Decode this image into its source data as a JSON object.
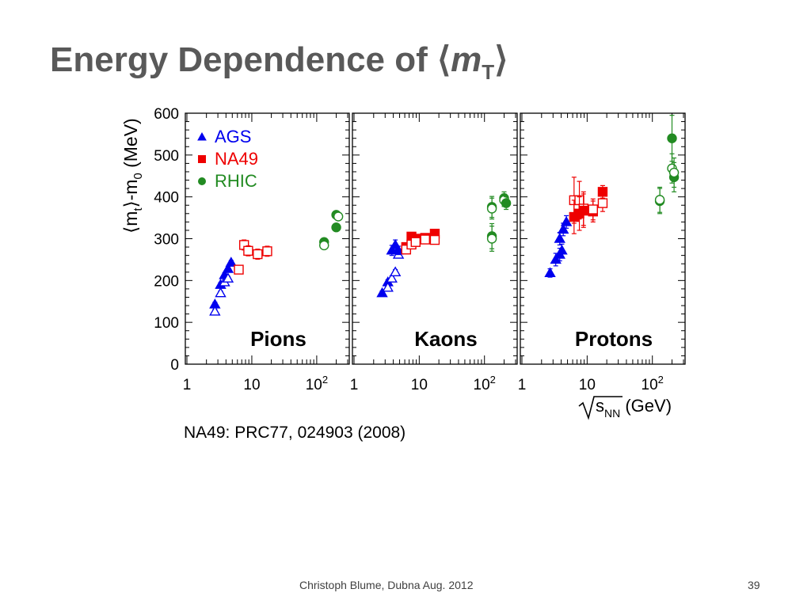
{
  "slide": {
    "title": "Energy Dependence of",
    "title_symbol": "m",
    "title_subscript": "T",
    "reference": "NA49: PRC77, 024903 (2008)",
    "footer": "Christoph Blume, Dubna Aug. 2012",
    "page_number": "39"
  },
  "colors": {
    "AGS": "#0000ee",
    "NA49": "#ee0000",
    "RHIC": "#228b22"
  },
  "chart_data": {
    "type": "scatter",
    "xscale": "log",
    "xlim": [
      1,
      300
    ],
    "ylim": [
      0,
      600
    ],
    "ylabel": "⟨m_t⟩-m_0 (MeV)",
    "xlabel": "√s_NN (GeV)",
    "xticks": [
      1,
      10,
      100
    ],
    "xtick_labels": [
      "1",
      "10",
      "10^2"
    ],
    "yticks": [
      0,
      100,
      200,
      300,
      400,
      500,
      600
    ],
    "legend": {
      "placement": "top-left",
      "entries": [
        {
          "name": "AGS",
          "marker": "triangle"
        },
        {
          "name": "NA49",
          "marker": "square"
        },
        {
          "name": "RHIC",
          "marker": "circle"
        }
      ]
    },
    "panels": [
      {
        "label": "Pions",
        "points": [
          {
            "series": "AGS",
            "open": false,
            "x": 2.7,
            "y": 143,
            "err": 5
          },
          {
            "series": "AGS",
            "open": true,
            "x": 2.7,
            "y": 126,
            "err": 5
          },
          {
            "series": "AGS",
            "open": false,
            "x": 3.3,
            "y": 190,
            "err": 5
          },
          {
            "series": "AGS",
            "open": true,
            "x": 3.3,
            "y": 170,
            "err": 5
          },
          {
            "series": "AGS",
            "open": false,
            "x": 3.8,
            "y": 213,
            "err": 5
          },
          {
            "series": "AGS",
            "open": true,
            "x": 3.8,
            "y": 196,
            "err": 5
          },
          {
            "series": "AGS",
            "open": false,
            "x": 4.3,
            "y": 228,
            "err": 5
          },
          {
            "series": "AGS",
            "open": true,
            "x": 4.3,
            "y": 205,
            "err": 5
          },
          {
            "series": "AGS",
            "open": false,
            "x": 4.8,
            "y": 243,
            "err": 5
          },
          {
            "series": "NA49",
            "open": true,
            "x": 6.3,
            "y": 226,
            "err": 10
          },
          {
            "series": "NA49",
            "open": true,
            "x": 7.6,
            "y": 285,
            "err": 12
          },
          {
            "series": "NA49",
            "open": true,
            "x": 8.8,
            "y": 271,
            "err": 12
          },
          {
            "series": "NA49",
            "open": true,
            "x": 12.3,
            "y": 263,
            "err": 12
          },
          {
            "series": "NA49",
            "open": true,
            "x": 17.3,
            "y": 270,
            "err": 12
          },
          {
            "series": "RHIC",
            "open": false,
            "x": 130,
            "y": 292,
            "err": 6
          },
          {
            "series": "RHIC",
            "open": true,
            "x": 130,
            "y": 284,
            "err": 6
          },
          {
            "series": "RHIC",
            "open": false,
            "x": 200,
            "y": 357,
            "err": 8
          },
          {
            "series": "RHIC",
            "open": false,
            "x": 200,
            "y": 327,
            "err": 8
          },
          {
            "series": "RHIC",
            "open": true,
            "x": 215,
            "y": 353,
            "err": 8
          }
        ]
      },
      {
        "label": "Kaons",
        "points": [
          {
            "series": "AGS",
            "open": false,
            "x": 2.7,
            "y": 170,
            "err": 5
          },
          {
            "series": "AGS",
            "open": false,
            "x": 3.3,
            "y": 196,
            "err": 6
          },
          {
            "series": "AGS",
            "open": true,
            "x": 3.3,
            "y": 183,
            "err": 6
          },
          {
            "series": "AGS",
            "open": false,
            "x": 3.8,
            "y": 272,
            "err": 12
          },
          {
            "series": "AGS",
            "open": true,
            "x": 3.8,
            "y": 205,
            "err": 6
          },
          {
            "series": "AGS",
            "open": true,
            "x": 4.3,
            "y": 220,
            "err": 6
          },
          {
            "series": "AGS",
            "open": false,
            "x": 4.3,
            "y": 285,
            "err": 12
          },
          {
            "series": "AGS",
            "open": true,
            "x": 4.8,
            "y": 262,
            "err": 8
          },
          {
            "series": "AGS",
            "open": false,
            "x": 4.8,
            "y": 272,
            "err": 10
          },
          {
            "series": "NA49",
            "open": false,
            "x": 6.3,
            "y": 280,
            "err": 8
          },
          {
            "series": "NA49",
            "open": true,
            "x": 6.3,
            "y": 274,
            "err": 8
          },
          {
            "series": "NA49",
            "open": false,
            "x": 7.6,
            "y": 305,
            "err": 10
          },
          {
            "series": "NA49",
            "open": true,
            "x": 7.6,
            "y": 286,
            "err": 10
          },
          {
            "series": "NA49",
            "open": false,
            "x": 8.8,
            "y": 300,
            "err": 10
          },
          {
            "series": "NA49",
            "open": true,
            "x": 8.8,
            "y": 292,
            "err": 10
          },
          {
            "series": "NA49",
            "open": false,
            "x": 12.3,
            "y": 302,
            "err": 10
          },
          {
            "series": "NA49",
            "open": true,
            "x": 12.3,
            "y": 298,
            "err": 10
          },
          {
            "series": "NA49",
            "open": false,
            "x": 17.3,
            "y": 312,
            "err": 10
          },
          {
            "series": "NA49",
            "open": true,
            "x": 17.3,
            "y": 297,
            "err": 10
          },
          {
            "series": "RHIC",
            "open": false,
            "x": 130,
            "y": 306,
            "err": 30
          },
          {
            "series": "RHIC",
            "open": true,
            "x": 130,
            "y": 300,
            "err": 30
          },
          {
            "series": "RHIC",
            "open": false,
            "x": 130,
            "y": 376,
            "err": 25
          },
          {
            "series": "RHIC",
            "open": true,
            "x": 130,
            "y": 372,
            "err": 25
          },
          {
            "series": "RHIC",
            "open": false,
            "x": 200,
            "y": 397,
            "err": 15
          },
          {
            "series": "RHIC",
            "open": true,
            "x": 200,
            "y": 392,
            "err": 15
          },
          {
            "series": "RHIC",
            "open": false,
            "x": 215,
            "y": 385,
            "err": 15
          }
        ]
      },
      {
        "label": "Protons",
        "points": [
          {
            "series": "AGS",
            "open": false,
            "x": 2.7,
            "y": 218,
            "err": 10
          },
          {
            "series": "AGS",
            "open": false,
            "x": 3.3,
            "y": 250,
            "err": 15
          },
          {
            "series": "AGS",
            "open": false,
            "x": 3.8,
            "y": 262,
            "err": 15
          },
          {
            "series": "AGS",
            "open": false,
            "x": 4.1,
            "y": 272,
            "err": 15
          },
          {
            "series": "AGS",
            "open": false,
            "x": 3.8,
            "y": 300,
            "err": 15
          },
          {
            "series": "AGS",
            "open": false,
            "x": 4.3,
            "y": 322,
            "err": 15
          },
          {
            "series": "AGS",
            "open": false,
            "x": 4.8,
            "y": 340,
            "err": 15
          },
          {
            "series": "NA49",
            "open": true,
            "x": 6.3,
            "y": 392,
            "err": 55
          },
          {
            "series": "NA49",
            "open": false,
            "x": 6.3,
            "y": 352,
            "err": 40
          },
          {
            "series": "NA49",
            "open": true,
            "x": 7.6,
            "y": 392,
            "err": 45
          },
          {
            "series": "NA49",
            "open": false,
            "x": 7.6,
            "y": 360,
            "err": 40
          },
          {
            "series": "NA49",
            "open": true,
            "x": 8.8,
            "y": 372,
            "err": 40
          },
          {
            "series": "NA49",
            "open": false,
            "x": 8.8,
            "y": 367,
            "err": 40
          },
          {
            "series": "NA49",
            "open": false,
            "x": 12.3,
            "y": 365,
            "err": 25
          },
          {
            "series": "NA49",
            "open": true,
            "x": 12.3,
            "y": 370,
            "err": 25
          },
          {
            "series": "NA49",
            "open": false,
            "x": 17.3,
            "y": 412,
            "err": 15
          },
          {
            "series": "NA49",
            "open": true,
            "x": 17.3,
            "y": 385,
            "err": 20
          },
          {
            "series": "RHIC",
            "open": false,
            "x": 130,
            "y": 390,
            "err": 30
          },
          {
            "series": "RHIC",
            "open": true,
            "x": 130,
            "y": 393,
            "err": 30
          },
          {
            "series": "RHIC",
            "open": false,
            "x": 200,
            "y": 540,
            "err": 55
          },
          {
            "series": "RHIC",
            "open": true,
            "x": 200,
            "y": 468,
            "err": 35
          },
          {
            "series": "RHIC",
            "open": false,
            "x": 215,
            "y": 447,
            "err": 35
          },
          {
            "series": "RHIC",
            "open": true,
            "x": 215,
            "y": 458,
            "err": 35
          }
        ]
      }
    ]
  }
}
